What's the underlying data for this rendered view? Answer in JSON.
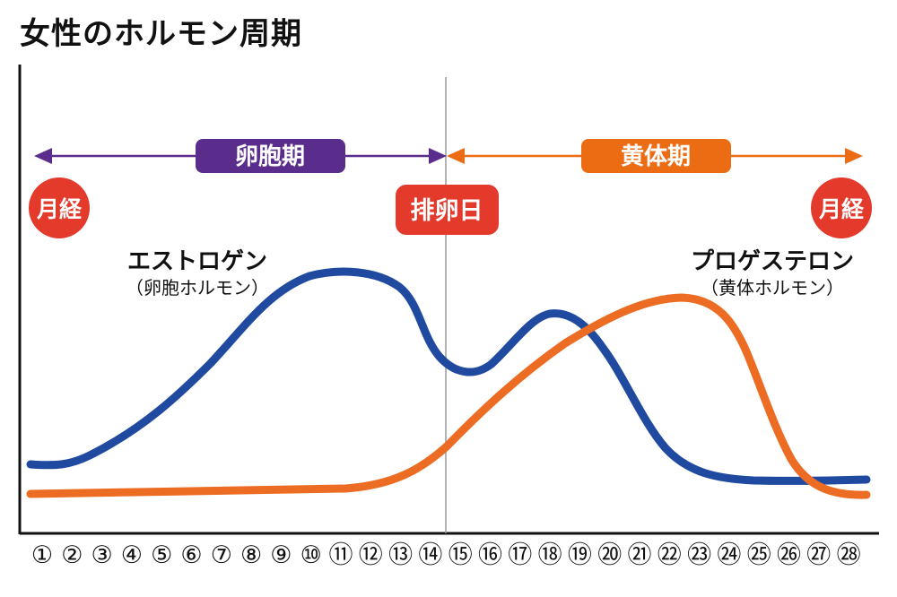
{
  "title": "女性のホルモン周期",
  "phases": {
    "follicular": {
      "label": "卵胞期",
      "color": "#5a2d8c"
    },
    "luteal": {
      "label": "黄体期",
      "color": "#ec6c14"
    }
  },
  "markers": {
    "menstruation_start": "月経",
    "ovulation": "排卵日",
    "menstruation_end": "月経",
    "color": "#e33a2c"
  },
  "estrogen": {
    "name": "エストロゲン",
    "sub": "（卵胞ホルモン）",
    "color": "#1f4aa0"
  },
  "progesterone": {
    "name": "プロゲステロン",
    "sub": "（黄体ホルモン）",
    "color": "#ec6c24"
  },
  "days": [
    "①",
    "②",
    "③",
    "④",
    "⑤",
    "⑥",
    "⑦",
    "⑧",
    "⑨",
    "⑩",
    "⑪",
    "⑫",
    "⑬",
    "⑭",
    "⑮",
    "⑯",
    "⑰",
    "⑱",
    "⑲",
    "⑳",
    "㉑",
    "㉒",
    "㉓",
    "㉔",
    "㉕",
    "㉖",
    "㉗",
    "㉘"
  ]
}
